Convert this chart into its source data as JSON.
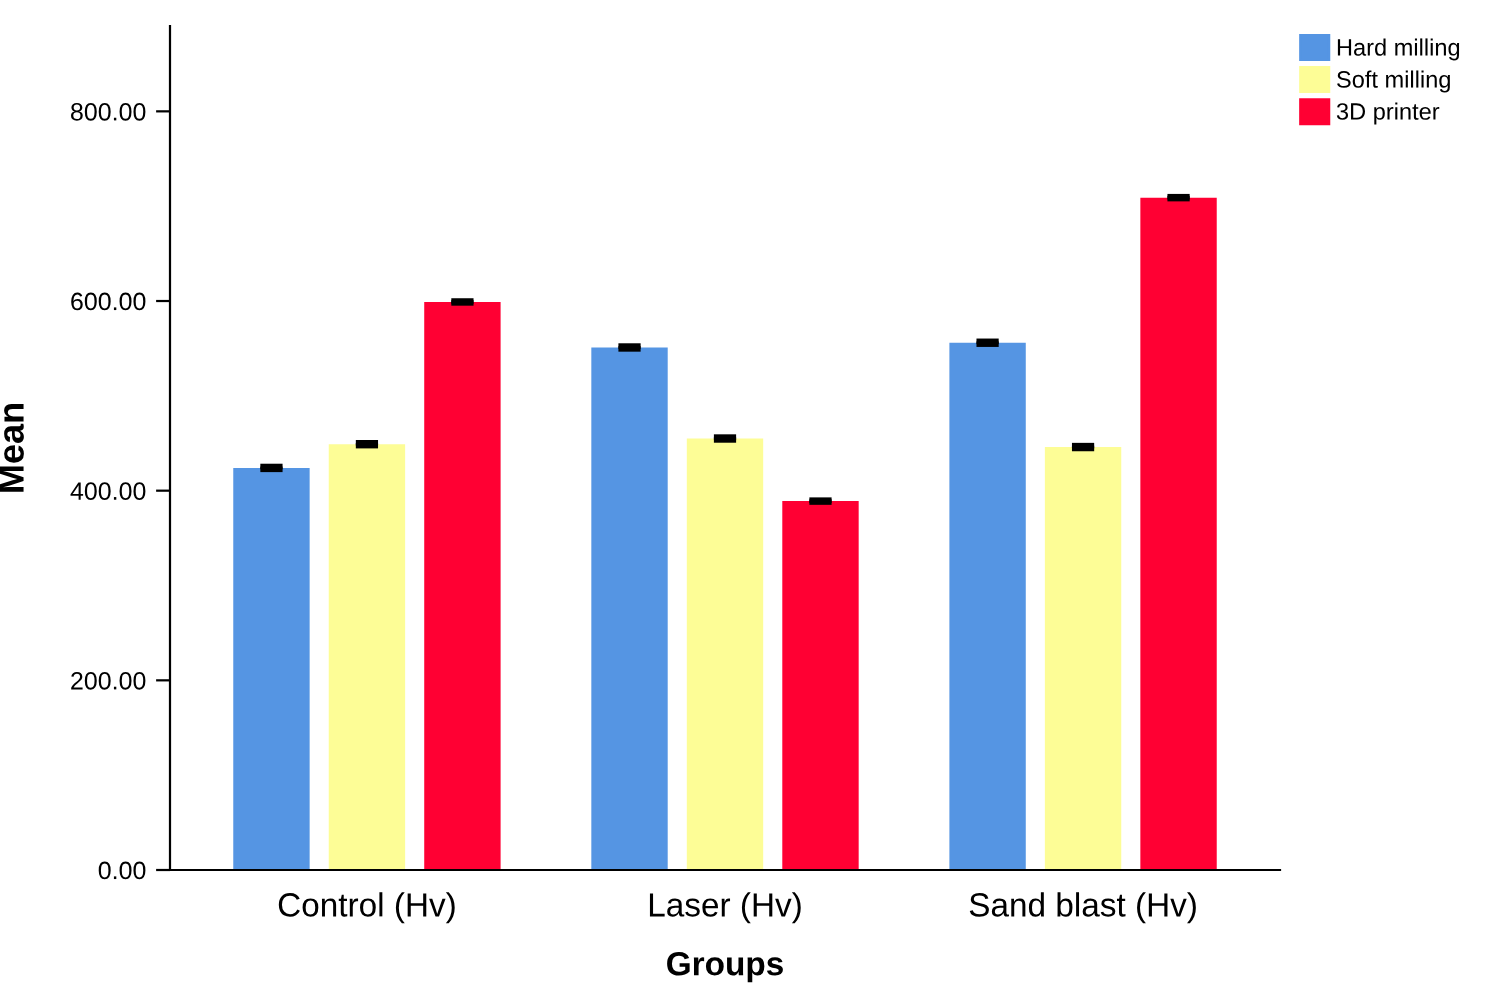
{
  "chart_data": {
    "type": "bar",
    "xlabel": "Groups",
    "ylabel": "Mean",
    "categories": [
      "Control (Hv)",
      "Laser (Hv)",
      "Sand blast (Hv)"
    ],
    "series": [
      {
        "name": "Hard milling",
        "color": "#5595e3",
        "values": [
          424,
          551,
          556
        ],
        "errors": [
          1.5,
          1.5,
          1.5
        ]
      },
      {
        "name": "Soft milling",
        "color": "#fdfd96",
        "values": [
          449,
          455,
          446
        ],
        "errors": [
          1.5,
          1.5,
          1.5
        ]
      },
      {
        "name": "3D printer",
        "color": "#ff0033",
        "values": [
          599,
          389,
          709
        ],
        "errors": [
          1,
          1,
          1
        ]
      }
    ],
    "ylim": [
      0,
      890
    ],
    "yticks": [
      {
        "value": 0,
        "label": "0.00"
      },
      {
        "value": 200,
        "label": "200.00"
      },
      {
        "value": 400,
        "label": "400.00"
      },
      {
        "value": 600,
        "label": "600.00"
      },
      {
        "value": 800,
        "label": "800.00"
      }
    ],
    "grid": false,
    "legend": "top right"
  }
}
